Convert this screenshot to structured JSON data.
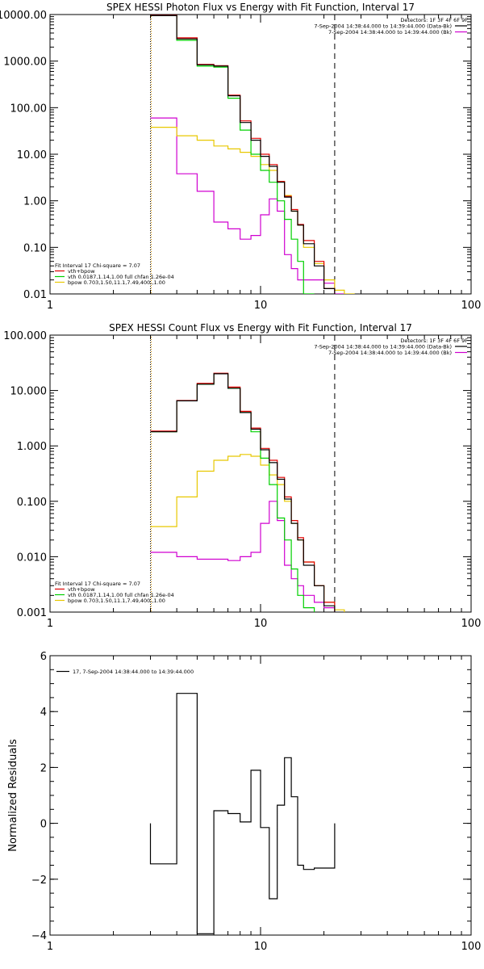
{
  "colors": {
    "data": "#000000",
    "total": "#e00000",
    "vth": "#00d000",
    "bpow": "#e8c800",
    "bk": "#d000d0",
    "marker_lo": "#d09000"
  },
  "chart_data": [
    {
      "type": "line",
      "title": "SPEX HESSI Photon Flux vs Energy with Fit Function, Interval 17",
      "xlabel": "",
      "ylabel": "",
      "xscale": "log",
      "yscale": "log",
      "xlim": [
        1,
        100
      ],
      "ylim": [
        0.01,
        10000
      ],
      "xtick_values": [
        1,
        10,
        100
      ],
      "xtick_labels": [
        "1",
        "10",
        "100"
      ],
      "ytick_values": [
        10000,
        1000,
        100,
        10,
        1,
        0.1,
        0.01
      ],
      "ytick_labels": [
        "10000.00",
        "1000.00",
        "100.00",
        "10.00",
        "1.00",
        "0.10",
        "0.01"
      ],
      "vlines": [
        {
          "x": 3,
          "style": "dotted"
        },
        {
          "x": 22.5,
          "style": "dashed"
        }
      ],
      "header_lines": [
        "Detectors: 1F 3F 4F 6F 9F",
        "7-Sep-2004 14:38:44.000 to 14:39:44.000 (Data-Bk)",
        "7-Sep-2004 14:38:44.000 to 14:39:44.000 (Bk)"
      ],
      "legend_lines": [
        "Fit Interval 17   Chi-square = 7.07",
        "vth+bpow",
        "vth 0.0187,1.14,1.00  full chfan 1.26e-04",
        "bpow 0.703,1.50,11.1,7.49,400.,1.00"
      ],
      "bin_edges": [
        3,
        4,
        5,
        6,
        7,
        8,
        9,
        10,
        11,
        12,
        13,
        14,
        15,
        16,
        18,
        20,
        22.5,
        25,
        28
      ],
      "series": [
        {
          "key": "data",
          "values": [
            9500,
            3000,
            830,
            780,
            180,
            48,
            20,
            9,
            5.5,
            2.5,
            1.2,
            0.6,
            0.3,
            0.12,
            0.04,
            0.013,
            null,
            null
          ]
        },
        {
          "key": "total",
          "values": [
            9600,
            3150,
            850,
            800,
            185,
            52,
            22,
            10,
            6,
            2.6,
            1.25,
            0.65,
            0.31,
            0.14,
            0.05,
            0.013,
            null,
            null
          ]
        },
        {
          "key": "vth",
          "values": [
            9500,
            2800,
            780,
            740,
            160,
            33,
            10,
            4.5,
            2.5,
            1.0,
            0.4,
            0.15,
            0.05,
            0.01,
            null,
            null,
            null,
            null
          ]
        },
        {
          "key": "bpow",
          "values": [
            38,
            25,
            20,
            15,
            13,
            11,
            9,
            6,
            4.5,
            2.6,
            1.3,
            0.6,
            0.3,
            0.1,
            0.045,
            0.02,
            0.012,
            0.01
          ]
        },
        {
          "key": "bk",
          "values": [
            60,
            3.8,
            1.6,
            0.35,
            0.25,
            0.15,
            0.18,
            0.5,
            1.1,
            0.6,
            0.07,
            0.035,
            0.02,
            0.02,
            0.02,
            0.017,
            0.01,
            null
          ]
        }
      ]
    },
    {
      "type": "line",
      "title": "SPEX HESSI Count Flux vs Energy with Fit Function, Interval 17",
      "xlabel": "",
      "ylabel": "",
      "xscale": "log",
      "yscale": "log",
      "xlim": [
        1,
        100
      ],
      "ylim": [
        0.001,
        100
      ],
      "xtick_values": [
        1,
        10,
        100
      ],
      "xtick_labels": [
        "1",
        "10",
        "100"
      ],
      "ytick_values": [
        100,
        10,
        1,
        0.1,
        0.01,
        0.001
      ],
      "ytick_labels": [
        "100.000",
        "10.000",
        "1.000",
        "0.100",
        "0.010",
        "0.001"
      ],
      "vlines": [
        {
          "x": 3,
          "style": "dotted"
        },
        {
          "x": 22.5,
          "style": "dashed"
        }
      ],
      "header_lines": [
        "Detectors: 1F 3F 4F 6F 9F",
        "7-Sep-2004 14:38:44.000 to 14:39:44.000 (Data-Bk)",
        "7-Sep-2004 14:38:44.000 to 14:39:44.000 (Bk)"
      ],
      "legend_lines": [
        "Fit Interval 17   Chi-square = 7.07",
        "vth+bpow",
        "vth 0.0187,1.14,1.00  full chfan 1.26e-04",
        "bpow 0.703,1.50,11.1,7.49,400.,1.00"
      ],
      "bin_edges": [
        3,
        4,
        5,
        6,
        7,
        8,
        9,
        10,
        11,
        12,
        13,
        14,
        15,
        16,
        18,
        20,
        22.5,
        25,
        28
      ],
      "series": [
        {
          "key": "data",
          "values": [
            1.8,
            6.5,
            13,
            20,
            11,
            4,
            2,
            0.85,
            0.5,
            0.25,
            0.11,
            0.04,
            0.02,
            0.007,
            0.003,
            0.0013,
            null,
            null
          ]
        },
        {
          "key": "total",
          "values": [
            1.85,
            6.6,
            13.5,
            20.5,
            11.5,
            4.2,
            2.1,
            0.9,
            0.55,
            0.27,
            0.12,
            0.045,
            0.022,
            0.008,
            0.003,
            0.0015,
            null,
            null
          ]
        },
        {
          "key": "vth",
          "values": [
            1.8,
            6.5,
            13,
            20,
            11,
            4,
            1.8,
            0.6,
            0.2,
            0.05,
            0.02,
            0.006,
            0.002,
            0.0012,
            null,
            null,
            null,
            null
          ]
        },
        {
          "key": "bpow",
          "values": [
            0.035,
            0.12,
            0.35,
            0.55,
            0.65,
            0.7,
            0.65,
            0.45,
            0.3,
            0.2,
            0.1,
            0.04,
            0.02,
            0.008,
            0.003,
            0.0015,
            0.0011,
            null
          ]
        },
        {
          "key": "bk",
          "values": [
            0.012,
            0.01,
            0.009,
            0.009,
            0.0085,
            0.01,
            0.012,
            0.04,
            0.1,
            0.045,
            0.007,
            0.004,
            0.003,
            0.002,
            0.0015,
            0.0012,
            null,
            null
          ]
        }
      ]
    },
    {
      "type": "line",
      "title": "",
      "xlabel": "",
      "ylabel": "Normalized Residuals",
      "xscale": "log",
      "yscale": "linear",
      "xlim": [
        1,
        100
      ],
      "ylim": [
        -4,
        6
      ],
      "xtick_values": [
        1,
        10,
        100
      ],
      "xtick_labels": [
        "1",
        "10",
        "100"
      ],
      "ytick_values": [
        6,
        4,
        2,
        0,
        -2,
        -4
      ],
      "ytick_labels": [
        "6",
        "4",
        "2",
        "0",
        "−2",
        "−4"
      ],
      "legend_lines": [
        "17,  7-Sep-2004 14:38:44.000 to 14:39:44.000"
      ],
      "bin_edges": [
        3,
        4,
        5,
        6,
        7,
        8,
        9,
        10,
        11,
        12,
        13,
        14,
        15,
        16,
        18,
        20,
        22.5
      ],
      "series": [
        {
          "key": "data",
          "values": [
            -1.45,
            4.65,
            -3.95,
            0.45,
            0.35,
            0.05,
            1.9,
            -0.15,
            -2.7,
            0.65,
            2.35,
            0.95,
            -1.5,
            -1.65,
            -1.6,
            -1.6
          ]
        }
      ]
    }
  ]
}
